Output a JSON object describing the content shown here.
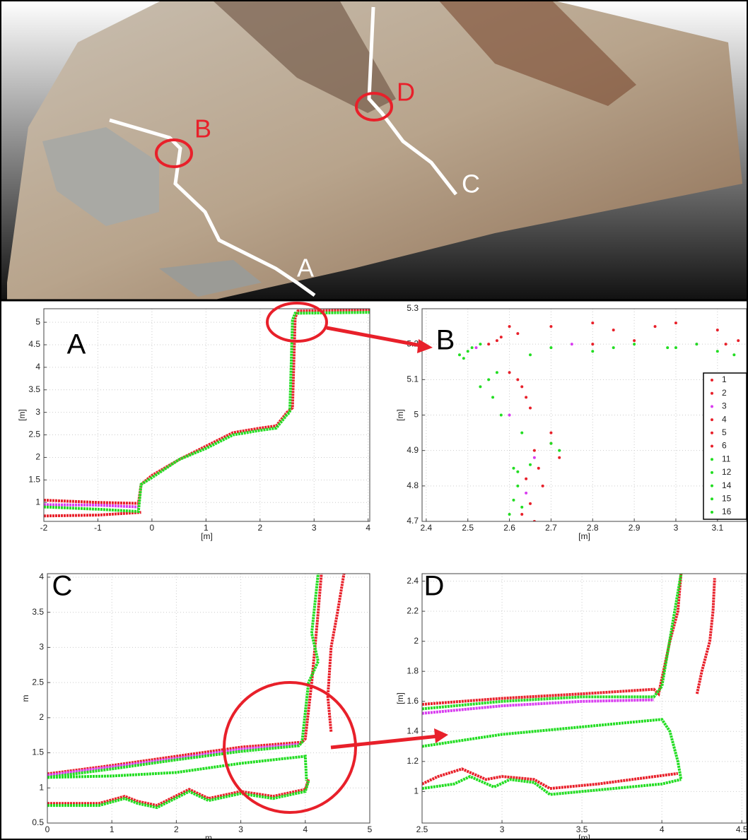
{
  "photo": {
    "labels": [
      "B",
      "D",
      "C",
      "A"
    ]
  },
  "chart_data": [
    {
      "type": "line",
      "title": "A",
      "x_label": "[m]",
      "y_label": "[m]",
      "xlim": [
        -2,
        4.03
      ],
      "ylim": [
        0.58,
        5.3
      ],
      "xticks": [
        -2,
        -1,
        0,
        1,
        2,
        3,
        4
      ],
      "yticks": [
        1,
        1.5,
        2,
        2.5,
        3,
        3.5,
        4,
        4.5,
        5
      ],
      "grid": true,
      "series": [
        {
          "color": "#e8202a",
          "x": [
            -2,
            -1,
            -0.25,
            -0.2,
            0,
            0.5,
            1,
            1.5,
            2,
            2.3,
            2.5,
            2.6,
            2.65,
            2.7,
            4.03
          ],
          "y": [
            1.05,
            1.0,
            0.98,
            1.4,
            1.6,
            1.95,
            2.25,
            2.55,
            2.65,
            2.7,
            3.0,
            3.1,
            5.1,
            5.25,
            5.27
          ]
        },
        {
          "color": "#e8202a",
          "x": [
            -2,
            -1,
            -0.2
          ],
          "y": [
            0.7,
            0.72,
            0.78
          ]
        },
        {
          "color": "#d83cf0",
          "x": [
            -2,
            -1,
            -0.25
          ],
          "y": [
            0.95,
            0.94,
            0.9
          ]
        },
        {
          "color": "#22dd22",
          "x": [
            -2,
            -1,
            -0.25,
            -0.2,
            0,
            0.5,
            1,
            1.5,
            2,
            2.3,
            2.5,
            2.55,
            2.6,
            2.65,
            4.03
          ],
          "y": [
            0.9,
            0.85,
            0.8,
            1.4,
            1.55,
            1.95,
            2.2,
            2.5,
            2.6,
            2.65,
            2.95,
            3.0,
            5.05,
            5.2,
            5.22
          ]
        }
      ]
    },
    {
      "type": "scatter",
      "title": "B",
      "x_label": "[m]",
      "y_label": "[m]",
      "xlim": [
        2.39,
        3.17
      ],
      "ylim": [
        4.7,
        5.3
      ],
      "xticks": [
        2.4,
        2.5,
        2.6,
        2.7,
        2.8,
        2.9,
        3,
        3.1
      ],
      "yticks": [
        4.7,
        4.8,
        4.9,
        5,
        5.1,
        5.2,
        5.3
      ],
      "grid": true,
      "legend": "right",
      "series": [
        {
          "name": "1",
          "color": "#e8202a",
          "x": [
            2.65,
            2.66,
            2.62,
            2.6,
            2.8,
            3.0
          ],
          "y": [
            4.75,
            4.9,
            5.1,
            5.25,
            5.26,
            5.26
          ]
        },
        {
          "name": "2",
          "color": "#e8202a",
          "x": [
            2.68,
            2.7,
            2.64,
            2.58,
            2.85,
            3.1
          ],
          "y": [
            4.8,
            4.95,
            5.05,
            5.22,
            5.24,
            5.24
          ]
        },
        {
          "name": "3",
          "color": "#d83cf0",
          "x": [
            2.64,
            2.66,
            2.6,
            2.52,
            2.75,
            3.05
          ],
          "y": [
            4.78,
            4.88,
            5.0,
            5.19,
            5.2,
            5.2
          ]
        },
        {
          "name": "4",
          "color": "#e8202a",
          "x": [
            2.63,
            2.67,
            2.65,
            2.55,
            2.9,
            3.15
          ],
          "y": [
            4.72,
            4.85,
            5.02,
            5.2,
            5.21,
            5.21
          ]
        },
        {
          "name": "5",
          "color": "#e8202a",
          "x": [
            2.66,
            2.7,
            2.6,
            2.62,
            2.7,
            2.95
          ],
          "y": [
            4.7,
            4.92,
            5.12,
            5.23,
            5.25,
            5.25
          ]
        },
        {
          "name": "6",
          "color": "#e8202a",
          "x": [
            2.64,
            2.72,
            2.63,
            2.57,
            2.8,
            3.12
          ],
          "y": [
            4.82,
            4.88,
            5.08,
            5.21,
            5.2,
            5.2
          ]
        },
        {
          "name": "11",
          "color": "#22dd22",
          "x": [
            2.6,
            2.61,
            2.56,
            2.5,
            2.7,
            3.0
          ],
          "y": [
            4.72,
            4.85,
            5.05,
            5.18,
            5.19,
            5.19
          ]
        },
        {
          "name": "12",
          "color": "#22dd22",
          "x": [
            2.62,
            2.63,
            2.55,
            2.48,
            2.8,
            3.1
          ],
          "y": [
            4.8,
            4.95,
            5.1,
            5.17,
            5.18,
            5.18
          ]
        },
        {
          "name": "14",
          "color": "#22dd22",
          "x": [
            2.61,
            2.72,
            2.58,
            2.53,
            2.9,
            3.05
          ],
          "y": [
            4.76,
            4.9,
            5.0,
            5.2,
            5.2,
            5.2
          ]
        },
        {
          "name": "15",
          "color": "#22dd22",
          "x": [
            2.63,
            2.65,
            2.53,
            2.49,
            2.65,
            3.14
          ],
          "y": [
            4.74,
            4.86,
            5.08,
            5.16,
            5.17,
            5.17
          ]
        },
        {
          "name": "16",
          "color": "#22dd22",
          "x": [
            2.62,
            2.7,
            2.57,
            2.51,
            2.85,
            2.98
          ],
          "y": [
            4.84,
            4.92,
            5.12,
            5.19,
            5.19,
            5.19
          ]
        }
      ]
    },
    {
      "type": "line",
      "title": "C",
      "x_label": "m",
      "y_label": "m",
      "xlim": [
        0,
        5
      ],
      "ylim": [
        0.5,
        4.05
      ],
      "xticks": [
        0,
        1,
        2,
        3,
        4,
        5
      ],
      "yticks": [
        0.5,
        1,
        1.5,
        2,
        2.5,
        3,
        3.5,
        4
      ],
      "grid": true,
      "series": [
        {
          "color": "#e8202a",
          "x": [
            0,
            1,
            2,
            3,
            3.95,
            4.0,
            4.1,
            4.15,
            4.2,
            4.25
          ],
          "y": [
            1.2,
            1.32,
            1.45,
            1.58,
            1.65,
            1.7,
            2.5,
            3.0,
            3.5,
            4.05
          ]
        },
        {
          "color": "#d83cf0",
          "x": [
            0,
            1,
            2,
            3,
            3.9
          ],
          "y": [
            1.18,
            1.3,
            1.42,
            1.55,
            1.62
          ]
        },
        {
          "color": "#22dd22",
          "x": [
            0,
            1,
            2,
            3,
            3.9,
            3.95,
            4.05,
            4.2,
            4.1,
            4.2
          ],
          "y": [
            1.15,
            1.27,
            1.4,
            1.52,
            1.6,
            1.65,
            2.5,
            2.8,
            3.2,
            4.05
          ]
        },
        {
          "color": "#22dd22",
          "x": [
            0,
            1,
            2,
            3,
            4.0,
            4.02
          ],
          "y": [
            1.15,
            1.17,
            1.22,
            1.35,
            1.45,
            1.1
          ]
        },
        {
          "color": "#e8202a",
          "x": [
            0,
            0.8,
            1.2,
            1.4,
            1.7,
            2.2,
            2.5,
            3,
            3.5,
            4.0,
            4.05
          ],
          "y": [
            0.78,
            0.78,
            0.88,
            0.81,
            0.75,
            0.98,
            0.85,
            0.95,
            0.88,
            0.98,
            1.12
          ]
        },
        {
          "color": "#22dd22",
          "x": [
            0,
            0.8,
            1.2,
            1.4,
            1.7,
            2.2,
            2.5,
            3,
            3.5,
            4.0,
            4.05
          ],
          "y": [
            0.75,
            0.75,
            0.85,
            0.78,
            0.72,
            0.95,
            0.82,
            0.92,
            0.85,
            0.95,
            1.1
          ]
        },
        {
          "color": "#e8202a",
          "x": [
            4.4,
            4.35,
            4.4,
            4.5,
            4.6
          ],
          "y": [
            1.8,
            2.3,
            3,
            3.5,
            4.05
          ]
        }
      ]
    },
    {
      "type": "line",
      "title": "D",
      "x_label": "[m]",
      "y_label": "[m]",
      "xlim": [
        2.5,
        4.53
      ],
      "ylim": [
        0.79,
        2.45
      ],
      "xticks": [
        2.5,
        3,
        3.5,
        4,
        4.5
      ],
      "yticks": [
        1,
        1.2,
        1.4,
        1.6,
        1.8,
        2,
        2.2,
        2.4
      ],
      "grid": true,
      "series": [
        {
          "color": "#e8202a",
          "x": [
            2.5,
            3,
            3.5,
            3.95,
            3.98,
            4.05,
            4.1,
            4.12
          ],
          "y": [
            1.58,
            1.62,
            1.65,
            1.68,
            1.65,
            2.0,
            2.2,
            2.45
          ]
        },
        {
          "color": "#d83cf0",
          "x": [
            2.5,
            3,
            3.5,
            3.95
          ],
          "y": [
            1.52,
            1.57,
            1.6,
            1.61
          ]
        },
        {
          "color": "#22dd22",
          "x": [
            2.5,
            3,
            3.5,
            3.95,
            4.0,
            4.08,
            4.12
          ],
          "y": [
            1.55,
            1.6,
            1.63,
            1.63,
            1.7,
            2.2,
            2.45
          ]
        },
        {
          "color": "#22dd22",
          "x": [
            2.5,
            3,
            3.5,
            4.0,
            4.05,
            4.1,
            4.12
          ],
          "y": [
            1.3,
            1.38,
            1.43,
            1.48,
            1.4,
            1.2,
            1.08
          ]
        },
        {
          "color": "#e8202a",
          "x": [
            2.5,
            2.6,
            2.75,
            2.9,
            3,
            3.2,
            3.3,
            3.6,
            4.1
          ],
          "y": [
            1.05,
            1.1,
            1.15,
            1.08,
            1.1,
            1.08,
            1.02,
            1.05,
            1.12
          ]
        },
        {
          "color": "#22dd22",
          "x": [
            2.5,
            2.7,
            2.8,
            2.95,
            3.05,
            3.2,
            3.3,
            3.5,
            3.8,
            4.0,
            4.12
          ],
          "y": [
            1.02,
            1.05,
            1.1,
            1.03,
            1.08,
            1.06,
            0.98,
            1.0,
            1.03,
            1.05,
            1.08
          ]
        },
        {
          "color": "#e8202a",
          "x": [
            4.22,
            4.25,
            4.3,
            4.32,
            4.33
          ],
          "y": [
            1.65,
            1.8,
            2.0,
            2.2,
            2.42
          ]
        }
      ]
    }
  ]
}
